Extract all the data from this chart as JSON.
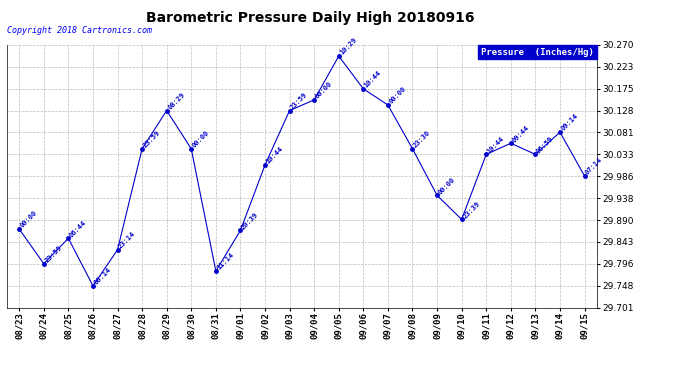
{
  "title": "Barometric Pressure Daily High 20180916",
  "copyright": "Copyright 2018 Cartronics.com",
  "legend_label": "Pressure  (Inches/Hg)",
  "ylim": [
    29.701,
    30.27
  ],
  "yticks": [
    29.701,
    29.748,
    29.796,
    29.843,
    29.89,
    29.938,
    29.986,
    30.033,
    30.081,
    30.128,
    30.175,
    30.223,
    30.27
  ],
  "dates": [
    "08/23",
    "08/24",
    "08/25",
    "08/26",
    "08/27",
    "08/28",
    "08/29",
    "08/30",
    "08/31",
    "09/01",
    "09/02",
    "09/03",
    "09/04",
    "09/05",
    "09/06",
    "09/07",
    "09/08",
    "09/09",
    "09/10",
    "09/11",
    "09/12",
    "09/13",
    "09/14",
    "09/15"
  ],
  "x_indices": [
    0,
    1,
    2,
    3,
    4,
    5,
    6,
    7,
    8,
    9,
    10,
    11,
    12,
    13,
    14,
    15,
    16,
    17,
    18,
    19,
    20,
    21,
    22,
    23
  ],
  "y_values": [
    29.871,
    29.796,
    29.851,
    29.748,
    29.826,
    30.045,
    30.128,
    30.045,
    29.78,
    29.868,
    30.01,
    30.128,
    30.151,
    30.246,
    30.175,
    30.14,
    30.045,
    29.944,
    29.892,
    30.033,
    30.057,
    30.033,
    30.081,
    29.986
  ],
  "time_labels": [
    "00:00",
    "23:59",
    "06:44",
    "00:14",
    "23:14",
    "23:59",
    "08:29",
    "00:00",
    "11:14",
    "20:39",
    "10:44",
    "23:59",
    "00:00",
    "10:29",
    "10:44",
    "00:00",
    "23:30",
    "00:00",
    "23:39",
    "10:44",
    "09:44",
    "06:59",
    "09:14",
    "07:14"
  ],
  "line_color": "#0000CC",
  "marker_color": "#0000CC",
  "label_color": "#0000CC",
  "bg_color": "#FFFFFF",
  "grid_color": "#BBBBBB",
  "legend_bg": "#0000CC",
  "legend_text_color": "#FFFFFF",
  "title_fontsize": 10,
  "copyright_fontsize": 6,
  "label_fontsize": 5,
  "tick_fontsize": 6.5
}
